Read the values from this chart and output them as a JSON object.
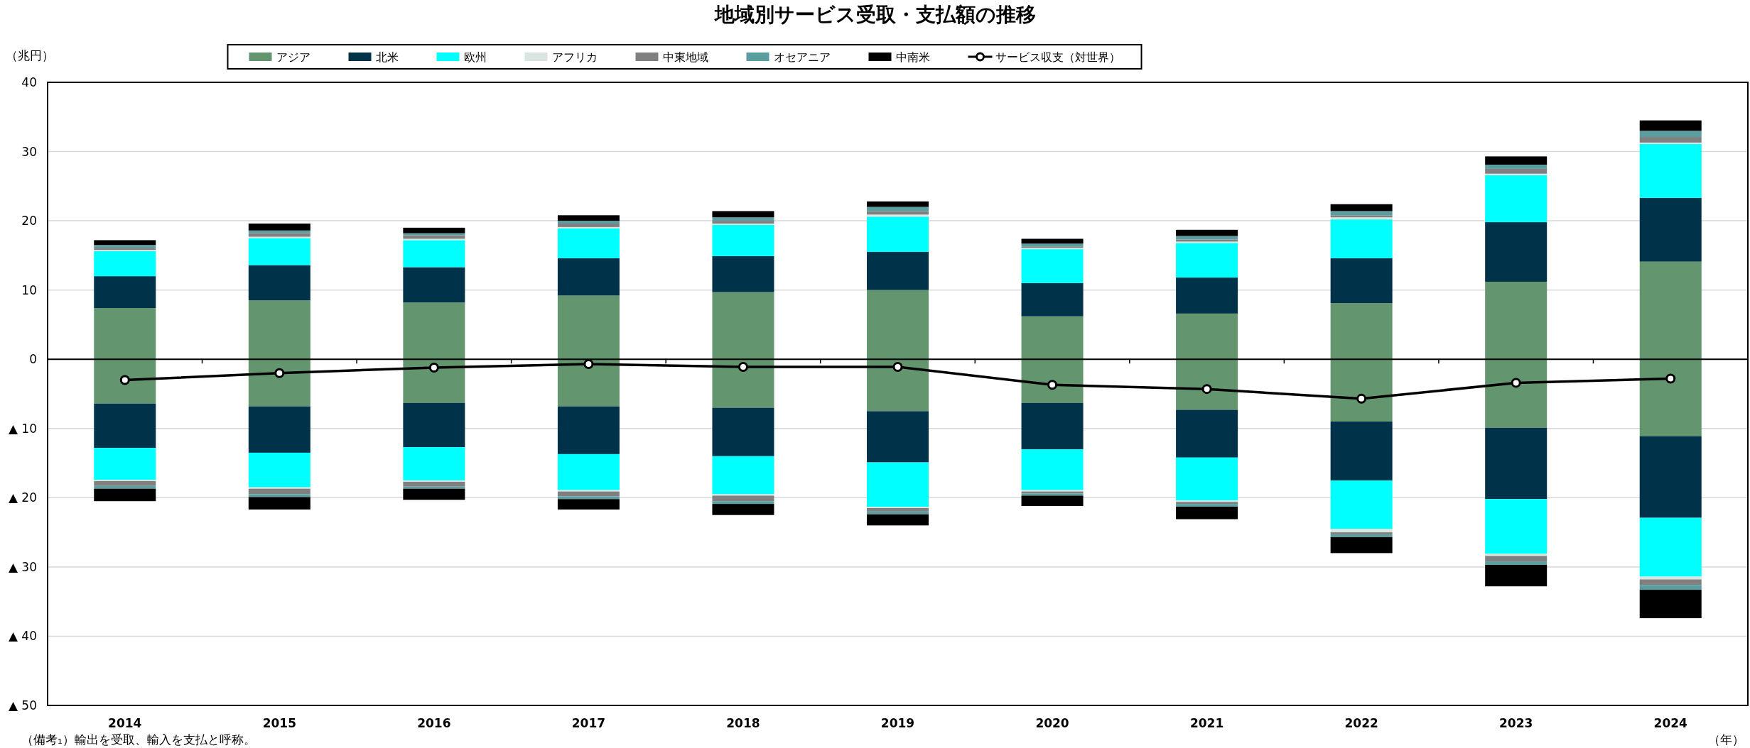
{
  "chart_data": {
    "type": "bar",
    "title": "地域別サービス受取・支払額の推移",
    "ylabel": "（兆円）",
    "xlabel": "（年）",
    "annotations": [
      "（備考₁）輸出を受取、輸入を支払と呼称。"
    ],
    "categories": [
      "2014",
      "2015",
      "2016",
      "2017",
      "2018",
      "2019",
      "2020",
      "2021",
      "2022",
      "2023",
      "2024"
    ],
    "stacked": true,
    "grid": "y",
    "legend": "top",
    "ylim": [
      -50,
      40
    ],
    "yticks": [
      40,
      30,
      20,
      10,
      0,
      {
        "value": -10,
        "label": "▲ 10"
      },
      {
        "value": -20,
        "label": "▲ 20"
      },
      {
        "value": -30,
        "label": "▲ 30"
      },
      {
        "value": -40,
        "label": "▲ 40"
      },
      {
        "value": -50,
        "label": "▲ 50"
      }
    ],
    "series": [
      {
        "name": "アジア",
        "color": "#63956f",
        "values": [
          7.4,
          8.5,
          8.2,
          9.2,
          9.7,
          10.0,
          6.2,
          6.6,
          8.1,
          11.2,
          14.1
        ]
      },
      {
        "name": "北米",
        "color": "#003349",
        "values": [
          4.6,
          5.1,
          5.1,
          5.4,
          5.2,
          5.5,
          4.8,
          5.2,
          6.5,
          8.6,
          9.2
        ]
      },
      {
        "name": "欧州",
        "color": "#00ffff",
        "values": [
          3.6,
          3.9,
          3.9,
          4.3,
          4.5,
          5.1,
          4.9,
          5.0,
          5.6,
          6.8,
          7.8
        ]
      },
      {
        "name": "アフリカ",
        "color": "#d9e6df",
        "values": [
          0.2,
          0.2,
          0.2,
          0.2,
          0.2,
          0.3,
          0.2,
          0.2,
          0.3,
          0.2,
          0.2
        ]
      },
      {
        "name": "中東地域",
        "color": "#808080",
        "values": [
          0.3,
          0.5,
          0.5,
          0.5,
          0.4,
          0.5,
          0.2,
          0.3,
          0.3,
          0.7,
          0.8
        ]
      },
      {
        "name": "オセアニア",
        "color": "#5b9ea0",
        "values": [
          0.4,
          0.4,
          0.3,
          0.4,
          0.5,
          0.6,
          0.4,
          0.5,
          0.6,
          0.6,
          0.9
        ]
      },
      {
        "name": "中南米",
        "color": "#000000",
        "values": [
          0.7,
          1.0,
          0.8,
          0.8,
          0.9,
          0.8,
          0.7,
          0.9,
          1.0,
          1.2,
          1.5
        ]
      },
      {
        "color": "#63956f",
        "values": [
          -6.4,
          -6.8,
          -6.3,
          -6.8,
          -7.0,
          -7.5,
          -6.3,
          -7.3,
          -9.0,
          -9.9,
          -11.1
        ]
      },
      {
        "color": "#003349",
        "values": [
          -6.4,
          -6.7,
          -6.4,
          -6.9,
          -7.0,
          -7.4,
          -6.7,
          -6.9,
          -8.5,
          -10.3,
          -11.8
        ]
      },
      {
        "color": "#00ffff",
        "values": [
          -4.6,
          -5.0,
          -4.8,
          -5.2,
          -5.5,
          -6.4,
          -5.9,
          -6.2,
          -7.0,
          -7.9,
          -8.5
        ]
      },
      {
        "color": "#d9e6df",
        "values": [
          -0.2,
          -0.2,
          -0.2,
          -0.2,
          -0.2,
          -0.2,
          -0.2,
          -0.2,
          -0.5,
          -0.3,
          -0.4
        ]
      },
      {
        "color": "#808080",
        "values": [
          -0.7,
          -0.8,
          -0.7,
          -0.7,
          -0.8,
          -0.5,
          -0.3,
          -0.3,
          -0.3,
          -0.8,
          -0.8
        ]
      },
      {
        "color": "#5b9ea0",
        "values": [
          -0.4,
          -0.4,
          -0.3,
          -0.4,
          -0.4,
          -0.4,
          -0.3,
          -0.4,
          -0.4,
          -0.5,
          -0.7
        ]
      },
      {
        "color": "#000000",
        "values": [
          -1.8,
          -1.8,
          -1.6,
          -1.5,
          -1.6,
          -1.6,
          -1.5,
          -1.8,
          -2.3,
          -3.1,
          -4.1
        ]
      },
      {
        "name": "サービス収支（対世界）",
        "type": "line",
        "marker": "circle",
        "line_style": "solid",
        "color": "#000000",
        "values": [
          -3.0,
          -2.0,
          -1.2,
          -0.7,
          -1.1,
          -1.1,
          -3.7,
          -4.3,
          -5.7,
          -3.4,
          -2.8
        ]
      }
    ]
  }
}
